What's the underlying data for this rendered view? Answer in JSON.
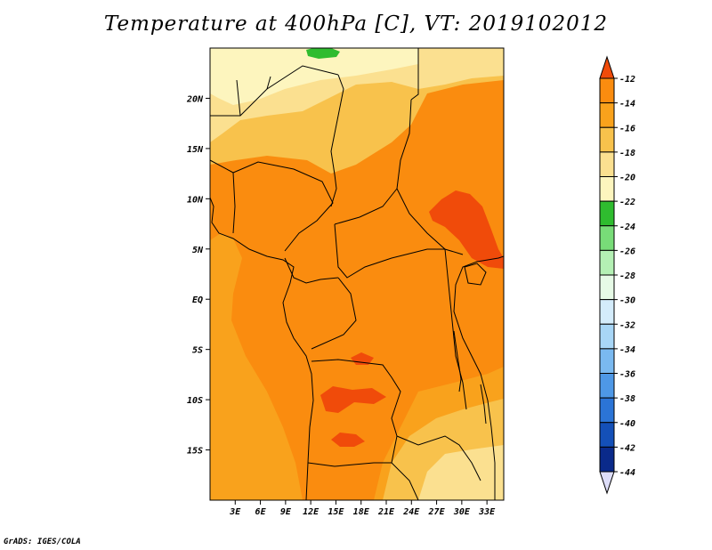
{
  "title": "Temperature at 400hPa [C], VT: 2019102012",
  "credit": "GrADS: IGES/COLA",
  "map": {
    "variable": "Temperature at 400hPa",
    "units": "C",
    "valid_time": "2019102012",
    "lon_range": [
      0,
      35
    ],
    "lat_range": [
      -20,
      25
    ],
    "x_ticks": [
      "3E",
      "6E",
      "9E",
      "12E",
      "15E",
      "18E",
      "21E",
      "24E",
      "27E",
      "30E",
      "33E"
    ],
    "y_ticks": [
      "20N",
      "15N",
      "10N",
      "5N",
      "EQ",
      "5S",
      "10S",
      "15S"
    ]
  },
  "colorbar": {
    "levels": [
      "-12",
      "-14",
      "-16",
      "-18",
      "-20",
      "-22",
      "-24",
      "-26",
      "-28",
      "-30",
      "-32",
      "-34",
      "-36",
      "-38",
      "-40",
      "-42",
      "-44"
    ],
    "colors": [
      "#f04b0a",
      "#fa8c0f",
      "#f9a21c",
      "#f8c24c",
      "#fbe090",
      "#fdf5be",
      "#2fbc2f",
      "#78dc78",
      "#b4f0b4",
      "#e6fae6",
      "#d4ecfb",
      "#a8d6f6",
      "#7ab9f0",
      "#4e98e6",
      "#2b74d6",
      "#1450b8",
      "#0a2a8a",
      "#0a0a55"
    ],
    "low_end_color": "#ddddf8"
  },
  "fill_colors": {
    "warmest": "#f04b0a",
    "range_14_16": "#fa8c0f",
    "range_16_18": "#f9a21c",
    "range_18_20": "#f8c24c",
    "range_20_22": "#fbe090",
    "range_22_24": "#fdf5be",
    "range_24_26": "#2fbc2f"
  }
}
